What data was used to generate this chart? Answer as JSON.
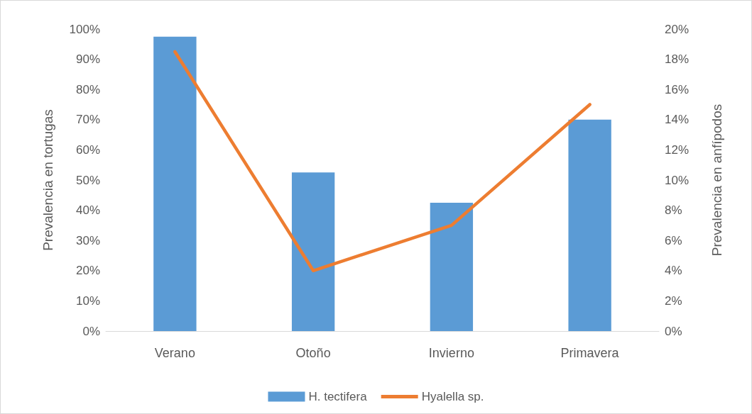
{
  "chart_data": {
    "type": "bar",
    "categories": [
      "Verano",
      "Otoño",
      "Invierno",
      "Primavera"
    ],
    "series": [
      {
        "name": "H. tectifera",
        "color": "#5b9bd5",
        "values": [
          97.5,
          52.5,
          42.5,
          70
        ]
      },
      {
        "name": "Hyalella sp.",
        "type": "line",
        "axis": "y2",
        "color": "#ed7d31",
        "values": [
          18.5,
          4,
          7,
          15
        ]
      }
    ],
    "ylabel": "Prevalencia en tortugas",
    "y2label": "Prevalencia en anfípodos",
    "ylim": [
      0,
      100
    ],
    "yticks": [
      {
        "value": 0,
        "label": "0%"
      },
      {
        "value": 10,
        "label": "10%"
      },
      {
        "value": 20,
        "label": "20%"
      },
      {
        "value": 30,
        "label": "30%"
      },
      {
        "value": 40,
        "label": "40%"
      },
      {
        "value": 50,
        "label": "50%"
      },
      {
        "value": 60,
        "label": "60%"
      },
      {
        "value": 70,
        "label": "70%"
      },
      {
        "value": 80,
        "label": "80%"
      },
      {
        "value": 90,
        "label": "90%"
      },
      {
        "value": 100,
        "label": "100%"
      }
    ],
    "y2lim": [
      0,
      20
    ],
    "y2ticks": [
      {
        "value": 0,
        "label": "0%"
      },
      {
        "value": 2,
        "label": "2%"
      },
      {
        "value": 4,
        "label": "4%"
      },
      {
        "value": 6,
        "label": "6%"
      },
      {
        "value": 8,
        "label": "8%"
      },
      {
        "value": 10,
        "label": "10%"
      },
      {
        "value": 12,
        "label": "12%"
      },
      {
        "value": 14,
        "label": "14%"
      },
      {
        "value": 16,
        "label": "16%"
      },
      {
        "value": 18,
        "label": "18%"
      },
      {
        "value": 20,
        "label": "20%"
      }
    ],
    "grid": false,
    "legend": "bottom",
    "marker": "none",
    "line_style": "solid"
  }
}
